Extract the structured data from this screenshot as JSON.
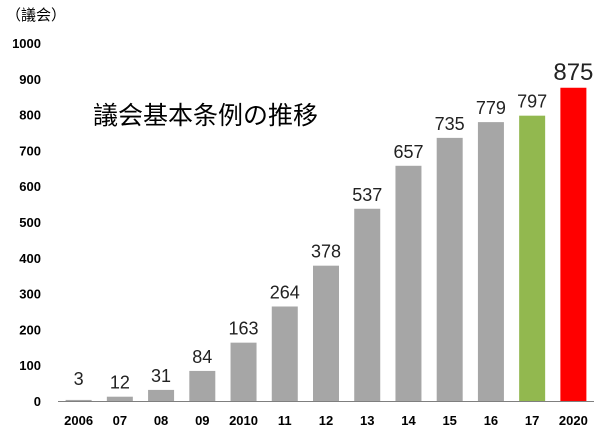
{
  "chart_data": {
    "type": "bar",
    "title": "議会基本条例の推移",
    "unit_label": "（議会）",
    "categories": [
      "2006",
      "07",
      "08",
      "09",
      "2010",
      "11",
      "12",
      "13",
      "14",
      "15",
      "16",
      "17",
      "2020"
    ],
    "values": [
      3,
      12,
      31,
      84,
      163,
      264,
      378,
      537,
      657,
      735,
      779,
      797,
      875
    ],
    "bar_colors": [
      "#a6a6a6",
      "#a6a6a6",
      "#a6a6a6",
      "#a6a6a6",
      "#a6a6a6",
      "#a6a6a6",
      "#a6a6a6",
      "#a6a6a6",
      "#a6a6a6",
      "#a6a6a6",
      "#a6a6a6",
      "#92b84f",
      "#ff0000"
    ],
    "highlight_label_index": 12,
    "y_ticks": [
      0,
      100,
      200,
      300,
      400,
      500,
      600,
      700,
      800,
      900,
      1000
    ],
    "ylim": [
      0,
      1000
    ],
    "grid": false,
    "legend": "none"
  }
}
